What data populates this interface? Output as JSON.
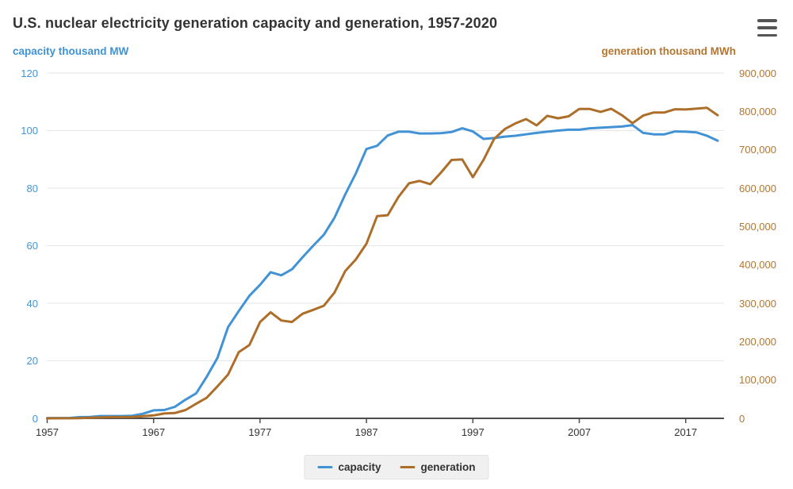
{
  "header": {
    "title": "U.S. nuclear electricity generation capacity and generation, 1957-2020"
  },
  "axes": {
    "left_title": "capacity thousand MW",
    "right_title": "generation thousand MWh",
    "left_tick_labels": [
      "0",
      "20",
      "40",
      "60",
      "80",
      "100",
      "120"
    ],
    "right_tick_labels": [
      "0",
      "100,000",
      "200,000",
      "300,000",
      "400,000",
      "500,000",
      "600,000",
      "700,000",
      "800,000",
      "900,000"
    ],
    "x_tick_labels": [
      "1957",
      "1967",
      "1977",
      "1987",
      "1997",
      "2007",
      "2017"
    ]
  },
  "legend": {
    "items": [
      {
        "label": "capacity",
        "color": "#4193d5"
      },
      {
        "label": "generation",
        "color": "#ad6e29"
      }
    ]
  },
  "colors": {
    "capacity_blue": "#4193d5",
    "generation_brown": "#ad6e29",
    "left_label_blue": "#4394d6",
    "right_label_brown": "#b5752f",
    "title_gray": "#333333",
    "gridline": "#e6e6e6",
    "axis_line": "#4d4d4d"
  },
  "chart_data": {
    "type": "line",
    "title": "U.S. nuclear electricity generation capacity and generation, 1957-2020",
    "xlabel": "",
    "ylabel_left": "capacity thousand MW",
    "ylabel_right": "generation thousand MWh",
    "xlim": [
      1957,
      2020
    ],
    "ylim_left": [
      0,
      120
    ],
    "ylim_right": [
      0,
      900000
    ],
    "x_tick_interval": 10,
    "grid": true,
    "legend_position": "bottom",
    "x": [
      1957,
      1958,
      1959,
      1960,
      1961,
      1962,
      1963,
      1964,
      1965,
      1966,
      1967,
      1968,
      1969,
      1970,
      1971,
      1972,
      1973,
      1974,
      1975,
      1976,
      1977,
      1978,
      1979,
      1980,
      1981,
      1982,
      1983,
      1984,
      1985,
      1986,
      1987,
      1988,
      1989,
      1990,
      1991,
      1992,
      1993,
      1994,
      1995,
      1996,
      1997,
      1998,
      1999,
      2000,
      2001,
      2002,
      2003,
      2004,
      2005,
      2006,
      2007,
      2008,
      2009,
      2010,
      2011,
      2012,
      2013,
      2014,
      2015,
      2016,
      2017,
      2018,
      2019,
      2020
    ],
    "series": [
      {
        "name": "capacity",
        "axis": "left",
        "unit": "thousand MW",
        "color": "#4193d5",
        "values": [
          0.1,
          0.1,
          0.1,
          0.4,
          0.5,
          0.8,
          0.8,
          0.8,
          0.9,
          1.6,
          2.8,
          2.9,
          4.0,
          6.5,
          8.7,
          14.5,
          21.0,
          31.7,
          37.3,
          42.6,
          46.4,
          50.8,
          49.7,
          51.8,
          56.0,
          60.0,
          63.8,
          69.7,
          77.8,
          85.1,
          93.6,
          94.7,
          98.3,
          99.6,
          99.6,
          99.0,
          99.0,
          99.1,
          99.5,
          100.8,
          99.7,
          97.1,
          97.4,
          97.9,
          98.2,
          98.7,
          99.2,
          99.6,
          100.0,
          100.3,
          100.3,
          100.8,
          101.0,
          101.2,
          101.4,
          101.9,
          99.2,
          98.7,
          98.7,
          99.7,
          99.6,
          99.4,
          98.2,
          96.5
        ]
      },
      {
        "name": "generation",
        "axis": "right",
        "unit": "thousand MWh",
        "color": "#ad6e29",
        "values": [
          10,
          165,
          188,
          518,
          1692,
          2270,
          3212,
          3343,
          3657,
          5520,
          7655,
          12528,
          13928,
          21804,
          38105,
          54077,
          83479,
          114270,
          172505,
          191104,
          250883,
          276403,
          255155,
          251116,
          272674,
          282773,
          293677,
          327634,
          383691,
          414038,
          455270,
          526973,
          529355,
          576862,
          612565,
          618776,
          610291,
          640440,
          673402,
          674729,
          628644,
          673702,
          728254,
          753893,
          768826,
          780064,
          763733,
          788528,
          781986,
          787219,
          806425,
          806208,
          798855,
          806968,
          790204,
          769331,
          789016,
          797166,
          797178,
          805694,
          804950,
          807084,
          809409,
          789879
        ]
      }
    ]
  }
}
